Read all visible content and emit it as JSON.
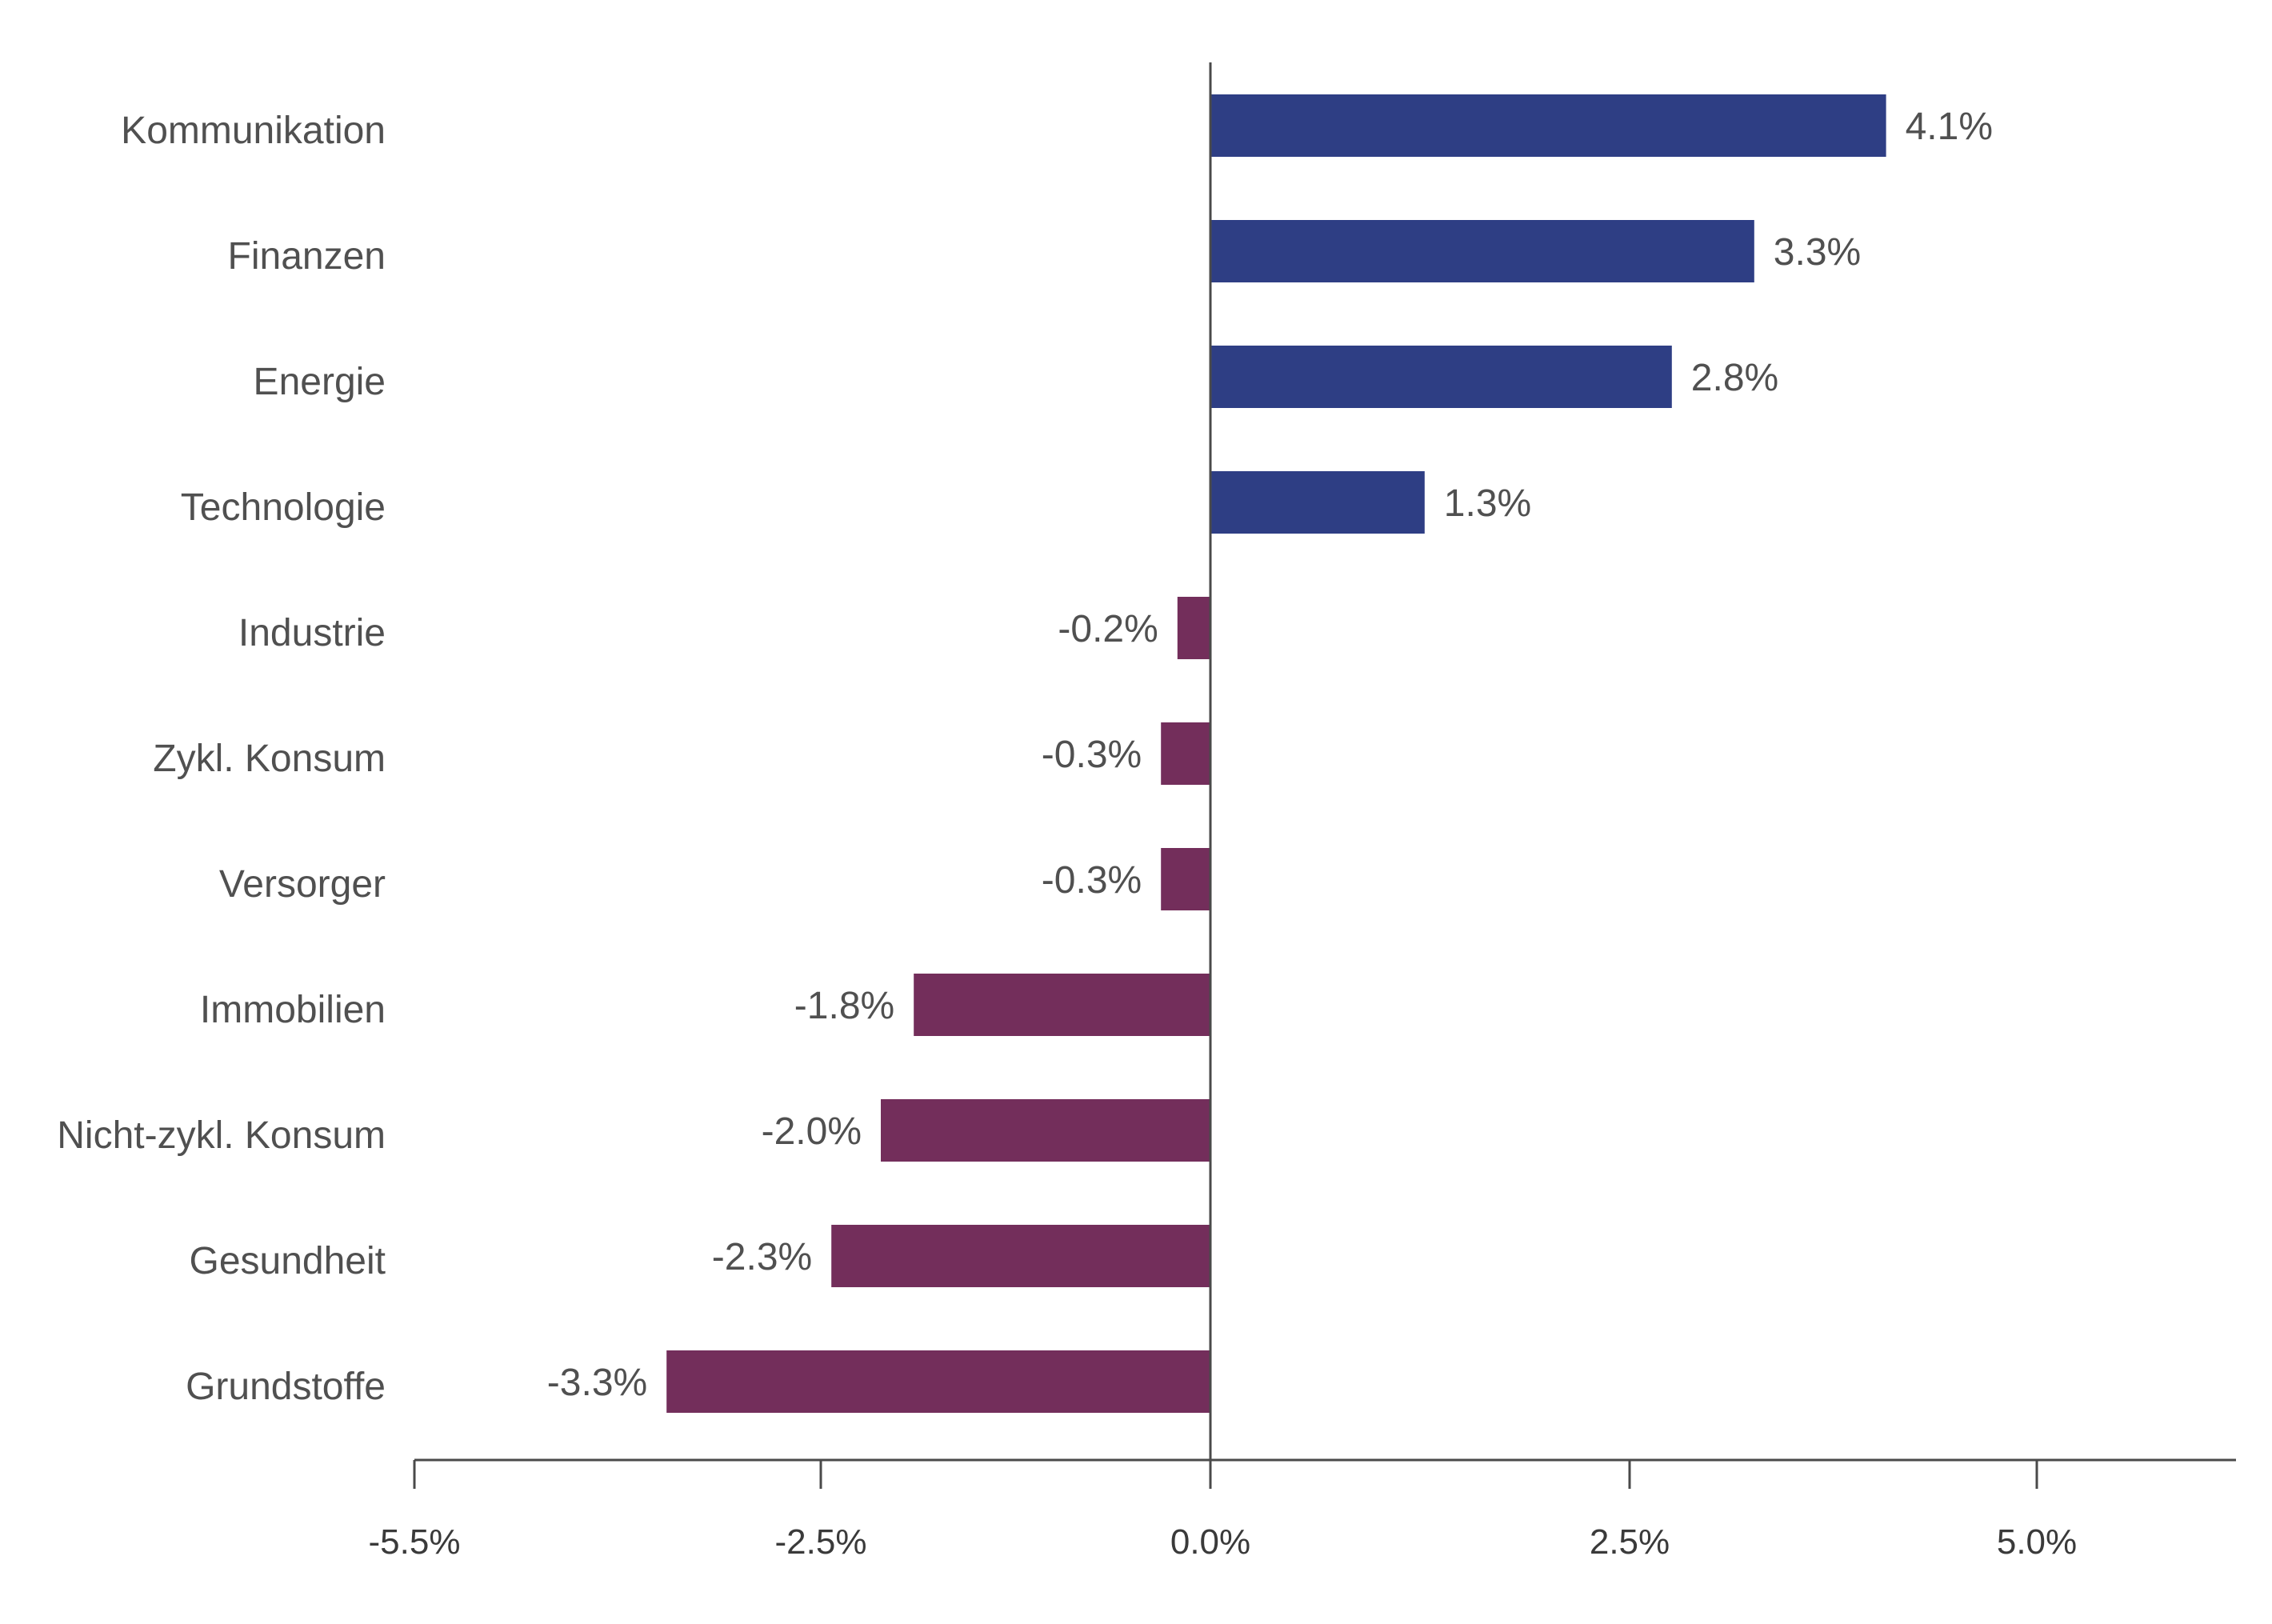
{
  "chart_data": {
    "type": "bar",
    "orientation": "horizontal",
    "categories": [
      "Kommunikation",
      "Finanzen",
      "Energie",
      "Technologie",
      "Industrie",
      "Zykl. Konsum",
      "Versorger",
      "Immobilien",
      "Nicht-zykl. Konsum",
      "Gesundheit",
      "Grundstoffe"
    ],
    "values": [
      4.1,
      3.3,
      2.8,
      1.3,
      -0.2,
      -0.3,
      -0.3,
      -1.8,
      -2.0,
      -2.3,
      -3.3
    ],
    "value_labels": [
      "4.1%",
      "3.3%",
      "2.8%",
      "1.3%",
      "-0.2%",
      "-0.3%",
      "-0.3%",
      "-1.8%",
      "-2.0%",
      "-2.3%",
      "-3.3%"
    ],
    "x_ticks": [
      -5.5,
      -2.5,
      0.0,
      2.5,
      5.0
    ],
    "x_tick_labels": [
      "-5.5%",
      "-2.5%",
      "0.0%",
      "2.5%",
      "5.0%"
    ],
    "title": "",
    "xlabel": "",
    "ylabel": "",
    "positive_color": "#2E3E84",
    "negative_color": "#732E5B",
    "grid": false
  }
}
